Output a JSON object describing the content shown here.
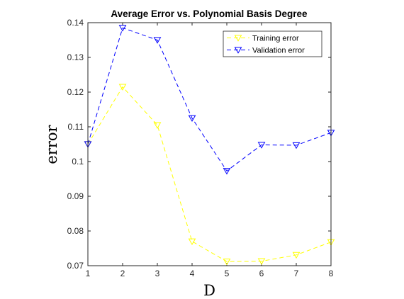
{
  "chart_data": {
    "type": "line",
    "title": "Average Error vs. Polynomial Basis Degree",
    "xlabel": "D",
    "ylabel": "error",
    "x": [
      1,
      2,
      3,
      4,
      5,
      6,
      7,
      8
    ],
    "xlim": [
      1,
      8
    ],
    "ylim": [
      0.07,
      0.14
    ],
    "xticks": [
      "1",
      "2",
      "3",
      "4",
      "5",
      "6",
      "7",
      "8"
    ],
    "yticks": [
      "0.07",
      "0.08",
      "0.09",
      "0.1",
      "0.11",
      "0.12",
      "0.13",
      "0.14"
    ],
    "grid": false,
    "legend_position": "top-right",
    "series": [
      {
        "name": "Training error",
        "color": "#ffff00",
        "line_style": "dashed",
        "marker": "down-triangle",
        "values": [
          0.105,
          0.1215,
          0.1105,
          0.077,
          0.0712,
          0.0713,
          0.0731,
          0.0768
        ]
      },
      {
        "name": "Validation error",
        "color": "#0000ff",
        "line_style": "dashed",
        "marker": "down-triangle",
        "values": [
          0.105,
          0.1385,
          0.135,
          0.1125,
          0.0973,
          0.1048,
          0.1047,
          0.1083
        ]
      }
    ]
  }
}
